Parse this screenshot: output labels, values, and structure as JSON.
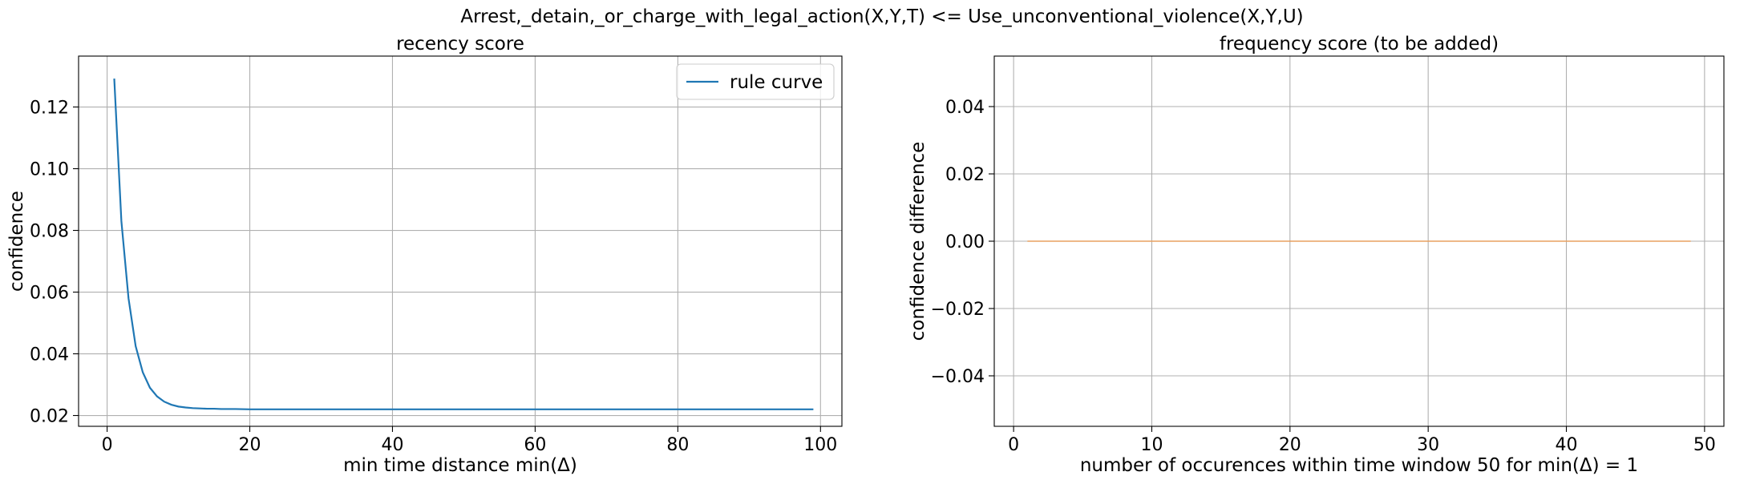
{
  "suptitle": "Arrest,_detain,_or_charge_with_legal_action(X,Y,T) <= Use_unconventional_violence(X,Y,U)",
  "chart_data": [
    {
      "type": "line",
      "title": "recency score",
      "xlabel": "min time distance min(Δ)",
      "ylabel": "confidence",
      "xlim": [
        -4,
        103
      ],
      "ylim": [
        0.0165,
        0.1365
      ],
      "xticks": [
        0,
        20,
        40,
        60,
        80,
        100
      ],
      "yticks": [
        0.02,
        0.04,
        0.06,
        0.08,
        0.1,
        0.12
      ],
      "ytick_labels": [
        "0.02",
        "0.04",
        "0.06",
        "0.08",
        "0.10",
        "0.12"
      ],
      "grid": true,
      "legend": {
        "position": "top-right"
      },
      "series": [
        {
          "name": "rule curve",
          "color": "#1f77b4",
          "x": [
            1,
            2,
            3,
            4,
            5,
            6,
            7,
            8,
            9,
            10,
            11,
            12,
            13,
            14,
            15,
            16,
            18,
            20,
            25,
            30,
            40,
            50,
            60,
            70,
            80,
            90,
            99
          ],
          "y": [
            0.1292,
            0.083,
            0.058,
            0.0425,
            0.034,
            0.029,
            0.0262,
            0.0245,
            0.0235,
            0.0229,
            0.0226,
            0.0224,
            0.0223,
            0.0222,
            0.0222,
            0.0221,
            0.0221,
            0.022,
            0.022,
            0.022,
            0.022,
            0.022,
            0.022,
            0.022,
            0.022,
            0.022,
            0.022
          ]
        }
      ]
    },
    {
      "type": "line",
      "title": "frequency score (to be added)",
      "xlabel": "number of occurences within time window 50 for min(Δ) = 1",
      "ylabel": "confidence difference",
      "xlim": [
        -1.4,
        51.4
      ],
      "ylim": [
        -0.055,
        0.055
      ],
      "xticks": [
        0,
        10,
        20,
        30,
        40,
        50
      ],
      "yticks": [
        -0.04,
        -0.02,
        0.0,
        0.02,
        0.04
      ],
      "ytick_labels": [
        "−0.04",
        "−0.02",
        "0.00",
        "0.02",
        "0.04"
      ],
      "grid": true,
      "series": [
        {
          "color": "#e8a060",
          "x": [
            1,
            49
          ],
          "y": [
            0.0,
            0.0
          ]
        }
      ]
    }
  ]
}
